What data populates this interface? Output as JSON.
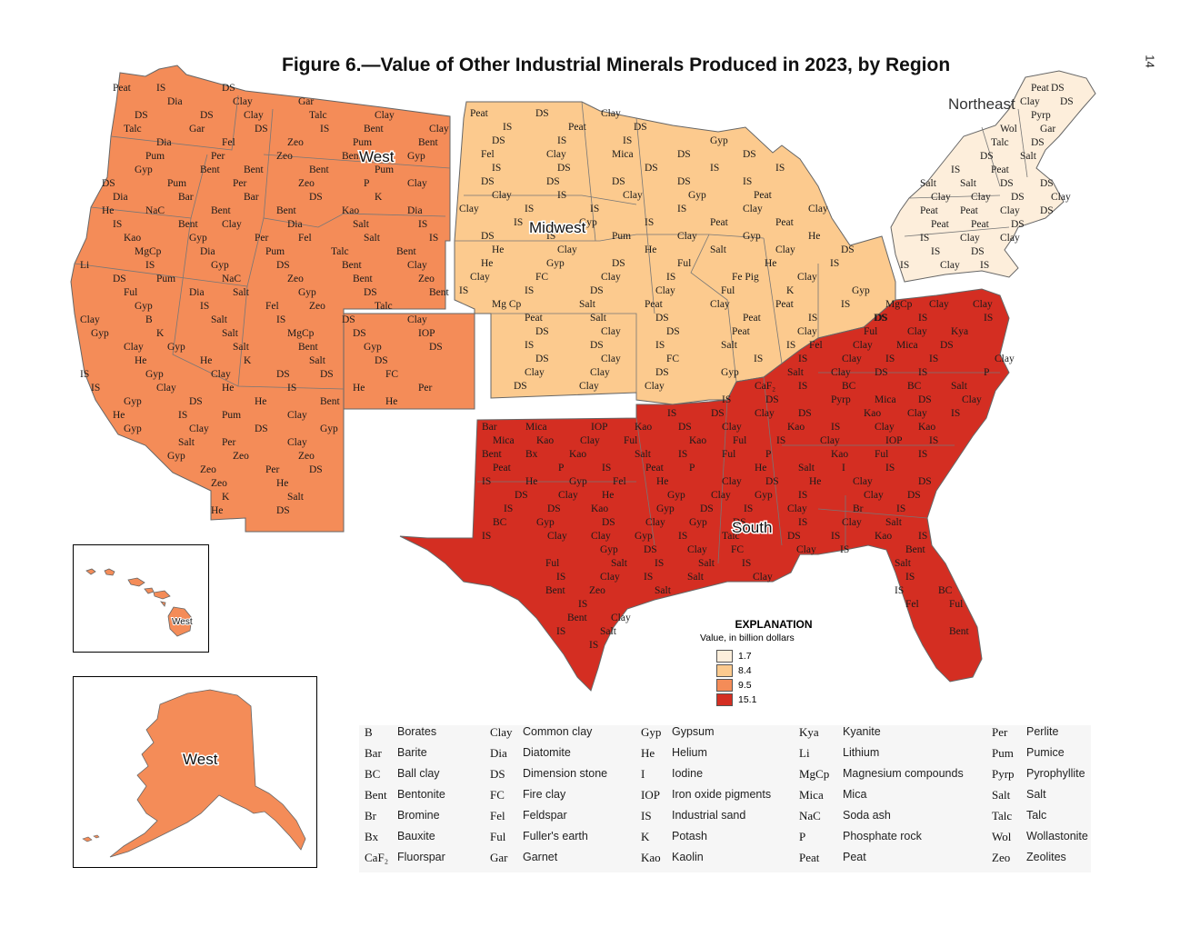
{
  "page_number": "14",
  "title": "Figure 6.—Value of Other Industrial Minerals Produced in 2023, by Region",
  "regions": {
    "west": "West",
    "midwest": "Midwest",
    "northeast": "Northeast",
    "south": "South"
  },
  "inset_labels": {
    "hawaii": "West",
    "alaska": "West"
  },
  "region_colors": {
    "northeast": "#fdeedb",
    "midwest": "#fcca8e",
    "west": "#f48c58",
    "south": "#d42e22"
  },
  "explanation": {
    "title": "EXPLANATION",
    "subtitle": "Value, in billion dollars",
    "classes": [
      {
        "label": "1.7",
        "color": "#fdeedb"
      },
      {
        "label": "8.4",
        "color": "#fcca8e"
      },
      {
        "label": "9.5",
        "color": "#f48c58"
      },
      {
        "label": "15.1",
        "color": "#d42e22"
      }
    ]
  },
  "legend": [
    {
      "code": "B",
      "name": "Borates"
    },
    {
      "code": "Clay",
      "name": "Common clay"
    },
    {
      "code": "Gyp",
      "name": "Gypsum"
    },
    {
      "code": "Kya",
      "name": "Kyanite"
    },
    {
      "code": "Per",
      "name": "Perlite"
    },
    {
      "code": "Bar",
      "name": "Barite"
    },
    {
      "code": "Dia",
      "name": "Diatomite"
    },
    {
      "code": "He",
      "name": "Helium"
    },
    {
      "code": "Li",
      "name": "Lithium"
    },
    {
      "code": "Pum",
      "name": "Pumice"
    },
    {
      "code": "BC",
      "name": "Ball clay"
    },
    {
      "code": "DS",
      "name": "Dimension stone"
    },
    {
      "code": "I",
      "name": "Iodine"
    },
    {
      "code": "MgCp",
      "name": "Magnesium compounds"
    },
    {
      "code": "Pyrp",
      "name": "Pyrophyllite"
    },
    {
      "code": "Bent",
      "name": "Bentonite"
    },
    {
      "code": "FC",
      "name": "Fire clay"
    },
    {
      "code": "IOP",
      "name": "Iron oxide pigments"
    },
    {
      "code": "Mica",
      "name": "Mica"
    },
    {
      "code": "Salt",
      "name": "Salt"
    },
    {
      "code": "Br",
      "name": "Bromine"
    },
    {
      "code": "Fel",
      "name": "Feldspar"
    },
    {
      "code": "IS",
      "name": "Industrial sand"
    },
    {
      "code": "NaC",
      "name": "Soda ash"
    },
    {
      "code": "Talc",
      "name": "Talc"
    },
    {
      "code": "Bx",
      "name": "Bauxite"
    },
    {
      "code": "Ful",
      "name": "Fuller's earth"
    },
    {
      "code": "K",
      "name": "Potash"
    },
    {
      "code": "P",
      "name": "Phosphate rock"
    },
    {
      "code": "Wol",
      "name": "Wollastonite"
    },
    {
      "code": "CaF₂",
      "name": "Fluorspar"
    },
    {
      "code": "Gar",
      "name": "Garnet"
    },
    {
      "code": "Kao",
      "name": "Kaolin"
    },
    {
      "code": "Peat",
      "name": "Peat"
    },
    {
      "code": "Zeo",
      "name": "Zeolites"
    }
  ],
  "map_codes": {
    "west": [
      "Peat",
      "IS",
      "DS",
      "Dia",
      "Clay",
      "Gar",
      "DS",
      "DS",
      "Clay",
      "Talc",
      "Clay",
      "Talc",
      "Gar",
      "DS",
      "IS",
      "Bent",
      "Clay",
      "Dia",
      "Fel",
      "Zeo",
      "Pum",
      "Bent",
      "Pum",
      "Per",
      "Zeo",
      "Bent",
      "Gyp",
      "Gyp",
      "Bent",
      "Bent",
      "Bent",
      "Pum",
      "DS",
      "Pum",
      "Per",
      "Zeo",
      "P",
      "Clay",
      "Dia",
      "Bar",
      "Bar",
      "DS",
      "K",
      "He",
      "NaC",
      "Bent",
      "Bent",
      "Kao",
      "Dia",
      "IS",
      "Bent",
      "Clay",
      "Dia",
      "Salt",
      "IS",
      "Kao",
      "Gyp",
      "Per",
      "Fel",
      "Salt",
      "IS",
      "MgCp",
      "Dia",
      "Pum",
      "Talc",
      "Bent",
      "Li",
      "IS",
      "Gyp",
      "DS",
      "Bent",
      "Clay",
      "DS",
      "Pum",
      "NaC",
      "Zeo",
      "Bent",
      "Zeo",
      "Ful",
      "Dia",
      "Salt",
      "Gyp",
      "DS",
      "Bent",
      "Gyp",
      "IS",
      "Fel",
      "Zeo",
      "Talc",
      "Clay",
      "B",
      "Salt",
      "IS",
      "DS",
      "Clay",
      "Gyp",
      "K",
      "Salt",
      "MgCp",
      "DS",
      "IOP",
      "Clay",
      "Gyp",
      "Salt",
      "Bent",
      "Gyp",
      "DS",
      "He",
      "He",
      "K",
      "Salt",
      "DS",
      "IS",
      "Gyp",
      "Clay",
      "DS",
      "DS",
      "FC",
      "IS",
      "Clay",
      "He",
      "IS",
      "He",
      "Per",
      "Gyp",
      "DS",
      "He",
      "Bent",
      "He",
      "He",
      "IS",
      "Pum",
      "Clay",
      "Gyp",
      "Clay",
      "DS",
      "Gyp",
      "Salt",
      "Per",
      "Clay",
      "Gyp",
      "Zeo",
      "Zeo",
      "Zeo",
      "Per",
      "DS",
      "Zeo",
      "He",
      "K",
      "Salt",
      "He",
      "DS"
    ],
    "midwest": [
      "Peat",
      "DS",
      "Clay",
      "IS",
      "Peat",
      "DS",
      "DS",
      "IS",
      "IS",
      "Gyp",
      "Fel",
      "Clay",
      "Mica",
      "DS",
      "DS",
      "IS",
      "DS",
      "DS",
      "IS",
      "IS",
      "DS",
      "DS",
      "DS",
      "DS",
      "IS",
      "Clay",
      "IS",
      "Clay",
      "Gyp",
      "Peat",
      "Clay",
      "IS",
      "IS",
      "IS",
      "Clay",
      "Clay",
      "IS",
      "Gyp",
      "IS",
      "Peat",
      "Peat",
      "DS",
      "IS",
      "Pum",
      "Clay",
      "Gyp",
      "He",
      "He",
      "Clay",
      "He",
      "Salt",
      "Clay",
      "DS",
      "He",
      "Gyp",
      "DS",
      "Ful",
      "He",
      "IS",
      "Clay",
      "FC",
      "Clay",
      "IS",
      "Fe Pig",
      "Clay",
      "IS",
      "IS",
      "DS",
      "Clay",
      "Ful",
      "K",
      "Gyp",
      "Mg Cp",
      "Salt",
      "Peat",
      "Clay",
      "Peat",
      "IS",
      "Peat",
      "Salt",
      "DS",
      "Peat",
      "IS",
      "DS",
      "DS",
      "Clay",
      "DS",
      "Peat",
      "Clay",
      "IS",
      "DS",
      "IS",
      "Salt",
      "IS",
      "DS",
      "Clay",
      "FC",
      "IS",
      "Clay",
      "Clay",
      "DS",
      "Gyp",
      "DS",
      "Clay",
      "Clay"
    ],
    "northeast": [
      "Peat",
      "DS",
      "Clay",
      "DS",
      "Pyrp",
      "Wol",
      "Gar",
      "Talc",
      "DS",
      "DS",
      "Salt",
      "IS",
      "Peat",
      "Salt",
      "Salt",
      "DS",
      "DS",
      "Clay",
      "Clay",
      "DS",
      "Clay",
      "Peat",
      "Peat",
      "Clay",
      "DS",
      "Peat",
      "Peat",
      "DS",
      "IS",
      "Clay",
      "Clay",
      "IS",
      "DS",
      "IS",
      "Clay",
      "IS"
    ],
    "south": [
      "MgCp",
      "Clay",
      "Clay",
      "DS",
      "IS",
      "IS",
      "Ful",
      "Clay",
      "Kya",
      "Fel",
      "Clay",
      "Mica",
      "DS",
      "IS",
      "Clay",
      "IS",
      "IS",
      "Clay",
      "Salt",
      "Clay",
      "DS",
      "IS",
      "P",
      "CaF₂",
      "IS",
      "BC",
      "BC",
      "Salt",
      "IS",
      "DS",
      "Pyrp",
      "Mica",
      "DS",
      "Clay",
      "IS",
      "DS",
      "Clay",
      "DS",
      "Kao",
      "Clay",
      "IS",
      "Bar",
      "Mica",
      "IOP",
      "Kao",
      "DS",
      "Clay",
      "Kao",
      "IS",
      "Clay",
      "Kao",
      "Mica",
      "Kao",
      "Clay",
      "Ful",
      "Kao",
      "Ful",
      "IS",
      "Clay",
      "IOP",
      "IS",
      "Bent",
      "Bx",
      "Kao",
      "Salt",
      "IS",
      "Ful",
      "P",
      "Kao",
      "Ful",
      "IS",
      "Peat",
      "P",
      "IS",
      "Peat",
      "P",
      "He",
      "Salt",
      "I",
      "IS",
      "IS",
      "He",
      "Gyp",
      "Fel",
      "He",
      "Clay",
      "DS",
      "He",
      "Clay",
      "DS",
      "DS",
      "Clay",
      "He",
      "Gyp",
      "Clay",
      "Gyp",
      "IS",
      "Clay",
      "DS",
      "IS",
      "DS",
      "Kao",
      "Gyp",
      "DS",
      "IS",
      "Clay",
      "Br",
      "IS",
      "BC",
      "Gyp",
      "DS",
      "Clay",
      "Gyp",
      "DS",
      "IS",
      "Clay",
      "Salt",
      "IS",
      "Clay",
      "Clay",
      "Gyp",
      "IS",
      "Talc",
      "DS",
      "IS",
      "Kao",
      "IS",
      "Gyp",
      "DS",
      "Clay",
      "FC",
      "Clay",
      "IS",
      "Bent",
      "Ful",
      "Salt",
      "IS",
      "Salt",
      "IS",
      "Salt",
      "IS",
      "Clay",
      "IS",
      "Salt",
      "Clay",
      "IS",
      "Bent",
      "Zeo",
      "Salt",
      "IS",
      "BC",
      "IS",
      "Fel",
      "Ful",
      "Bent",
      "Clay",
      "IS",
      "Salt",
      "Bent",
      "IS"
    ]
  }
}
